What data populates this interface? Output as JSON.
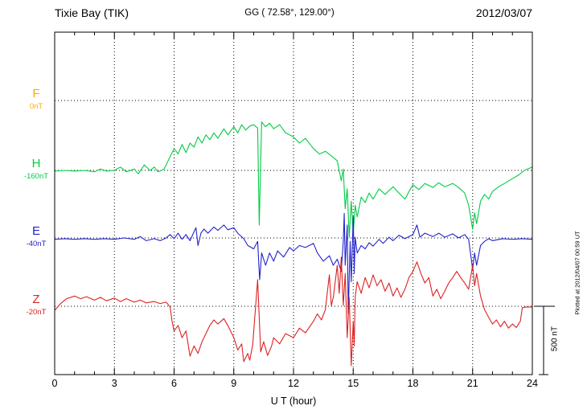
{
  "header": {
    "station": "Tixie Bay (TIK)",
    "coordinates": "GG ( 72.58°, 129.00°)",
    "date": "2012/03/07"
  },
  "axis": {
    "x_title": "U T (hour)",
    "x_ticks": [
      0,
      3,
      6,
      9,
      12,
      15,
      18,
      21,
      24
    ],
    "x_minor_step": 1,
    "x_range": [
      0,
      24
    ]
  },
  "scale_bar": {
    "label": "500 nT",
    "nT": 500
  },
  "footer": {
    "plotted_at": "Plotted at 2012/04/07 00:59 UT"
  },
  "components": [
    {
      "id": "F",
      "label": "F",
      "baseline_label": "0nT",
      "baseline_nT": 0,
      "color": "#FFAA00"
    },
    {
      "id": "H",
      "label": "H",
      "baseline_label": "-160nT",
      "baseline_nT": -160,
      "color": "#00CC44"
    },
    {
      "id": "E",
      "label": "E",
      "baseline_label": "-40nT",
      "baseline_nT": -40,
      "color": "#2222CC"
    },
    {
      "id": "Z",
      "label": "Z",
      "baseline_label": "-20nT",
      "baseline_nT": -20,
      "color": "#DD2222"
    }
  ],
  "chart_data": {
    "type": "line",
    "title": "Tixie Bay (TIK) magnetogram 2012/03/07",
    "xlabel": "U T (hour)",
    "x_range": [
      0,
      24
    ],
    "grid": "dotted",
    "scale_bar_nT": 500,
    "legend_position": "left-margin",
    "series": [
      {
        "name": "F",
        "unit": "nT",
        "baseline_nT": 0,
        "color": "#FFAA00",
        "points": []
      },
      {
        "name": "H",
        "unit": "nT",
        "baseline_nT": -160,
        "color": "#00CC44",
        "points": [
          [
            0,
            -165
          ],
          [
            0.5,
            -160
          ],
          [
            1,
            -165
          ],
          [
            1.5,
            -160
          ],
          [
            2,
            -170
          ],
          [
            2.3,
            -150
          ],
          [
            2.6,
            -165
          ],
          [
            3,
            -160
          ],
          [
            3.3,
            -135
          ],
          [
            3.6,
            -170
          ],
          [
            4,
            -150
          ],
          [
            4.2,
            -185
          ],
          [
            4.5,
            -120
          ],
          [
            4.8,
            -160
          ],
          [
            5,
            -135
          ],
          [
            5.2,
            -170
          ],
          [
            5.5,
            -150
          ],
          [
            5.8,
            -60
          ],
          [
            6,
            0
          ],
          [
            6.2,
            -40
          ],
          [
            6.4,
            30
          ],
          [
            6.6,
            -30
          ],
          [
            6.8,
            40
          ],
          [
            7,
            10
          ],
          [
            7.2,
            85
          ],
          [
            7.4,
            40
          ],
          [
            7.6,
            100
          ],
          [
            7.8,
            65
          ],
          [
            8,
            115
          ],
          [
            8.2,
            75
          ],
          [
            8.5,
            145
          ],
          [
            8.7,
            100
          ],
          [
            9,
            160
          ],
          [
            9.2,
            115
          ],
          [
            9.4,
            175
          ],
          [
            9.6,
            135
          ],
          [
            9.8,
            165
          ],
          [
            10,
            175
          ],
          [
            10.2,
            150
          ],
          [
            10.28,
            -560
          ],
          [
            10.4,
            195
          ],
          [
            10.6,
            160
          ],
          [
            10.8,
            185
          ],
          [
            11,
            145
          ],
          [
            11.3,
            175
          ],
          [
            11.6,
            115
          ],
          [
            12,
            85
          ],
          [
            12.3,
            40
          ],
          [
            12.6,
            75
          ],
          [
            13,
            0
          ],
          [
            13.3,
            -40
          ],
          [
            13.6,
            -20
          ],
          [
            14,
            -65
          ],
          [
            14.2,
            -90
          ],
          [
            14.4,
            -235
          ],
          [
            14.5,
            -150
          ],
          [
            14.6,
            -440
          ],
          [
            14.7,
            -295
          ],
          [
            14.8,
            -650
          ],
          [
            14.9,
            -385
          ],
          [
            15,
            -620
          ],
          [
            15.1,
            -415
          ],
          [
            15.2,
            -500
          ],
          [
            15.4,
            -355
          ],
          [
            15.6,
            -395
          ],
          [
            15.8,
            -325
          ],
          [
            16,
            -370
          ],
          [
            16.3,
            -295
          ],
          [
            16.6,
            -335
          ],
          [
            17,
            -280
          ],
          [
            17.3,
            -325
          ],
          [
            17.6,
            -370
          ],
          [
            17.8,
            -315
          ],
          [
            18,
            -265
          ],
          [
            18.3,
            -300
          ],
          [
            18.6,
            -255
          ],
          [
            19,
            -285
          ],
          [
            19.3,
            -250
          ],
          [
            19.6,
            -280
          ],
          [
            20,
            -255
          ],
          [
            20.3,
            -285
          ],
          [
            20.6,
            -325
          ],
          [
            20.8,
            -415
          ],
          [
            21,
            -590
          ],
          [
            21.1,
            -470
          ],
          [
            21.2,
            -550
          ],
          [
            21.4,
            -385
          ],
          [
            21.6,
            -335
          ],
          [
            21.8,
            -370
          ],
          [
            22,
            -315
          ],
          [
            22.3,
            -280
          ],
          [
            22.6,
            -255
          ],
          [
            23,
            -220
          ],
          [
            23.3,
            -195
          ],
          [
            23.6,
            -160
          ],
          [
            24,
            -135
          ]
        ]
      },
      {
        "name": "E",
        "unit": "nT",
        "baseline_nT": -40,
        "color": "#2222CC",
        "points": [
          [
            0,
            -50
          ],
          [
            0.5,
            -45
          ],
          [
            1,
            -50
          ],
          [
            1.5,
            -45
          ],
          [
            2,
            -50
          ],
          [
            2.5,
            -45
          ],
          [
            3,
            -50
          ],
          [
            3.5,
            -40
          ],
          [
            4,
            -50
          ],
          [
            4.3,
            -30
          ],
          [
            4.6,
            -60
          ],
          [
            5,
            -45
          ],
          [
            5.3,
            -60
          ],
          [
            5.6,
            -40
          ],
          [
            5.8,
            -15
          ],
          [
            6,
            -45
          ],
          [
            6.2,
            -5
          ],
          [
            6.4,
            -50
          ],
          [
            6.6,
            -15
          ],
          [
            6.8,
            -60
          ],
          [
            7,
            5
          ],
          [
            7.1,
            35
          ],
          [
            7.2,
            -95
          ],
          [
            7.35,
            -5
          ],
          [
            7.5,
            25
          ],
          [
            7.7,
            -5
          ],
          [
            8,
            40
          ],
          [
            8.2,
            15
          ],
          [
            8.5,
            55
          ],
          [
            8.7,
            20
          ],
          [
            9,
            35
          ],
          [
            9.2,
            -5
          ],
          [
            9.5,
            -45
          ],
          [
            9.7,
            -95
          ],
          [
            10,
            -120
          ],
          [
            10.2,
            -65
          ],
          [
            10.3,
            -345
          ],
          [
            10.4,
            -150
          ],
          [
            10.6,
            -240
          ],
          [
            10.8,
            -150
          ],
          [
            11,
            -210
          ],
          [
            11.2,
            -135
          ],
          [
            11.5,
            -180
          ],
          [
            11.8,
            -110
          ],
          [
            12,
            -135
          ],
          [
            12.3,
            -95
          ],
          [
            12.6,
            -110
          ],
          [
            13,
            -80
          ],
          [
            13.2,
            -150
          ],
          [
            13.5,
            -210
          ],
          [
            13.8,
            -170
          ],
          [
            14,
            -240
          ],
          [
            14.2,
            -195
          ],
          [
            14.4,
            -285
          ],
          [
            14.5,
            -65
          ],
          [
            14.55,
            140
          ],
          [
            14.6,
            -240
          ],
          [
            14.7,
            55
          ],
          [
            14.75,
            -595
          ],
          [
            14.85,
            -65
          ],
          [
            14.9,
            -360
          ],
          [
            15,
            115
          ],
          [
            15.05,
            -300
          ],
          [
            15.1,
            -35
          ],
          [
            15.2,
            -150
          ],
          [
            15.4,
            -95
          ],
          [
            15.6,
            -120
          ],
          [
            15.8,
            -75
          ],
          [
            16,
            -100
          ],
          [
            16.3,
            -50
          ],
          [
            16.5,
            -80
          ],
          [
            16.8,
            -35
          ],
          [
            17,
            -60
          ],
          [
            17.3,
            -20
          ],
          [
            17.6,
            -45
          ],
          [
            18,
            -15
          ],
          [
            18.2,
            55
          ],
          [
            18.35,
            -35
          ],
          [
            18.6,
            -5
          ],
          [
            19,
            -30
          ],
          [
            19.3,
            -5
          ],
          [
            19.6,
            -35
          ],
          [
            20,
            -10
          ],
          [
            20.3,
            -40
          ],
          [
            20.6,
            -15
          ],
          [
            20.8,
            -50
          ],
          [
            21,
            -270
          ],
          [
            21.1,
            -150
          ],
          [
            21.2,
            -240
          ],
          [
            21.4,
            -95
          ],
          [
            21.6,
            -65
          ],
          [
            21.8,
            -45
          ],
          [
            22,
            -60
          ],
          [
            22.5,
            -45
          ],
          [
            23,
            -50
          ],
          [
            23.5,
            -45
          ],
          [
            24,
            -50
          ]
        ]
      },
      {
        "name": "Z",
        "unit": "nT",
        "baseline_nT": -20,
        "color": "#DD2222",
        "points": [
          [
            0,
            -50
          ],
          [
            0.3,
            0
          ],
          [
            0.6,
            35
          ],
          [
            1,
            55
          ],
          [
            1.3,
            35
          ],
          [
            1.6,
            50
          ],
          [
            2,
            25
          ],
          [
            2.3,
            45
          ],
          [
            2.6,
            20
          ],
          [
            3,
            40
          ],
          [
            3.3,
            15
          ],
          [
            3.6,
            35
          ],
          [
            4,
            10
          ],
          [
            4.3,
            25
          ],
          [
            4.6,
            5
          ],
          [
            5,
            15
          ],
          [
            5.3,
            0
          ],
          [
            5.6,
            10
          ],
          [
            5.8,
            -25
          ],
          [
            5.9,
            -130
          ],
          [
            6,
            -200
          ],
          [
            6.2,
            -160
          ],
          [
            6.4,
            -250
          ],
          [
            6.6,
            -200
          ],
          [
            6.8,
            -385
          ],
          [
            7,
            -310
          ],
          [
            7.2,
            -365
          ],
          [
            7.4,
            -280
          ],
          [
            7.6,
            -220
          ],
          [
            7.8,
            -160
          ],
          [
            8,
            -120
          ],
          [
            8.2,
            -150
          ],
          [
            8.5,
            -110
          ],
          [
            8.7,
            -160
          ],
          [
            9,
            -250
          ],
          [
            9.2,
            -340
          ],
          [
            9.4,
            -295
          ],
          [
            9.5,
            -425
          ],
          [
            9.7,
            -365
          ],
          [
            9.8,
            -415
          ],
          [
            9.95,
            -300
          ],
          [
            10.2,
            175
          ],
          [
            10.35,
            -355
          ],
          [
            10.5,
            -280
          ],
          [
            10.7,
            -380
          ],
          [
            10.9,
            -310
          ],
          [
            11,
            -250
          ],
          [
            11.3,
            -295
          ],
          [
            11.6,
            -220
          ],
          [
            12,
            -250
          ],
          [
            12.3,
            -180
          ],
          [
            12.6,
            -215
          ],
          [
            13,
            -130
          ],
          [
            13.2,
            -75
          ],
          [
            13.4,
            -120
          ],
          [
            13.6,
            -45
          ],
          [
            13.8,
            210
          ],
          [
            13.9,
            -15
          ],
          [
            14,
            45
          ],
          [
            14.2,
            280
          ],
          [
            14.3,
            75
          ],
          [
            14.4,
            340
          ],
          [
            14.5,
            -15
          ],
          [
            14.6,
            220
          ],
          [
            14.7,
            -250
          ],
          [
            14.8,
            45
          ],
          [
            14.9,
            -455
          ],
          [
            15,
            -130
          ],
          [
            15.05,
            -310
          ],
          [
            15.1,
            45
          ],
          [
            15.2,
            160
          ],
          [
            15.4,
            75
          ],
          [
            15.6,
            190
          ],
          [
            15.8,
            115
          ],
          [
            16,
            210
          ],
          [
            16.2,
            130
          ],
          [
            16.4,
            175
          ],
          [
            16.6,
            90
          ],
          [
            16.8,
            150
          ],
          [
            17,
            55
          ],
          [
            17.2,
            115
          ],
          [
            17.4,
            45
          ],
          [
            17.6,
            105
          ],
          [
            17.8,
            190
          ],
          [
            18,
            235
          ],
          [
            18.2,
            305
          ],
          [
            18.4,
            220
          ],
          [
            18.6,
            150
          ],
          [
            18.8,
            190
          ],
          [
            19,
            55
          ],
          [
            19.2,
            105
          ],
          [
            19.4,
            35
          ],
          [
            19.6,
            90
          ],
          [
            19.8,
            150
          ],
          [
            20,
            190
          ],
          [
            20.2,
            235
          ],
          [
            20.4,
            190
          ],
          [
            20.6,
            150
          ],
          [
            20.8,
            105
          ],
          [
            21,
            280
          ],
          [
            21.1,
            130
          ],
          [
            21.2,
            220
          ],
          [
            21.4,
            55
          ],
          [
            21.6,
            -45
          ],
          [
            21.8,
            -100
          ],
          [
            22,
            -150
          ],
          [
            22.2,
            -120
          ],
          [
            22.4,
            -170
          ],
          [
            22.6,
            -130
          ],
          [
            22.8,
            -180
          ],
          [
            23,
            -150
          ],
          [
            23.2,
            -175
          ],
          [
            23.4,
            -130
          ],
          [
            23.5,
            -30
          ],
          [
            23.7,
            -25
          ],
          [
            24,
            -25
          ]
        ]
      }
    ]
  }
}
